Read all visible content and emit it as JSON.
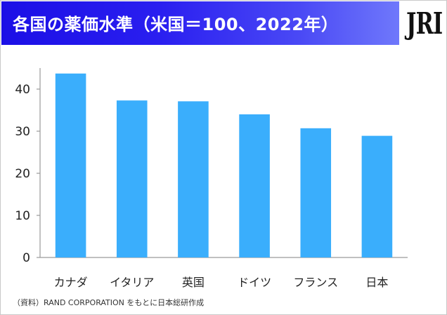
{
  "header": {
    "title": "各国の薬価水準（米国＝100、2022年）",
    "logo_text": "JRI"
  },
  "source": "（資料）RAND CORPORATION をもとに日本総研作成",
  "colors": {
    "bar": "#3aaefc",
    "banner": "#2a1ff0"
  },
  "chart_data": {
    "type": "bar",
    "title": "各国の薬価水準（米国＝100、2022年）",
    "categories": [
      "カナダ",
      "イタリア",
      "英国",
      "ドイツ",
      "フランス",
      "日本"
    ],
    "values": [
      43.7,
      37.3,
      37.1,
      34.0,
      30.7,
      28.9
    ],
    "yticks": [
      0,
      10,
      20,
      30,
      40
    ],
    "ylim": [
      0,
      45
    ],
    "xlabel": "",
    "ylabel": "",
    "grid": false,
    "legend": "none"
  }
}
